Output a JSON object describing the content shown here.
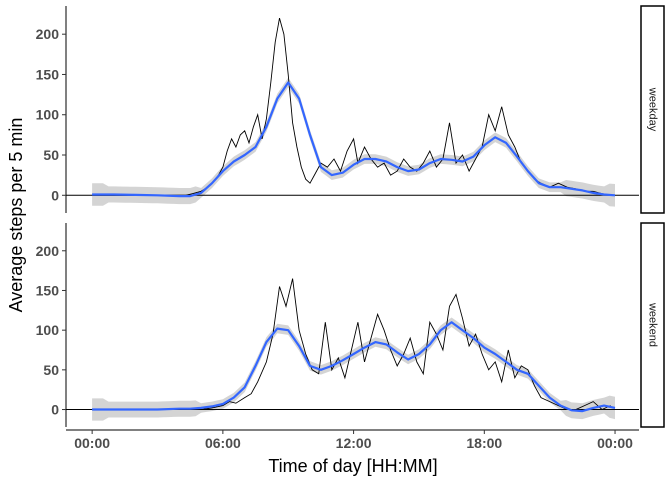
{
  "chart_data": {
    "type": "line",
    "title": "",
    "xlabel": "Time of day [HH:MM]",
    "ylabel": "Average steps per 5 min",
    "x_ticks": [
      "00:00",
      "06:00",
      "12:00",
      "18:00",
      "00:00"
    ],
    "y_ticks": [
      0,
      50,
      100,
      150,
      200
    ],
    "xlim_hours": [
      -1.2,
      25.1
    ],
    "ylim": [
      -22,
      235
    ],
    "grid": false,
    "facet_strip_position": "right",
    "colors": {
      "smooth": "#3366ff",
      "band": "#cccccc",
      "raw": "#000000",
      "zero_line": "#000000"
    },
    "panels": [
      {
        "label": "weekday",
        "raw": {
          "x": [
            0,
            0.5,
            1,
            1.5,
            2,
            2.5,
            3,
            3.5,
            4,
            4.3,
            4.6,
            5,
            5.3,
            5.6,
            5.8,
            6,
            6.2,
            6.4,
            6.6,
            6.8,
            7,
            7.2,
            7.4,
            7.6,
            7.8,
            8,
            8.2,
            8.4,
            8.6,
            8.8,
            9,
            9.2,
            9.4,
            9.6,
            9.8,
            10,
            10.2,
            10.5,
            10.8,
            11.1,
            11.4,
            11.7,
            12,
            12.2,
            12.5,
            12.8,
            13.1,
            13.4,
            13.7,
            14,
            14.3,
            14.6,
            14.9,
            15.2,
            15.5,
            15.8,
            16.1,
            16.4,
            16.7,
            17,
            17.3,
            17.6,
            17.9,
            18.2,
            18.5,
            18.8,
            19.1,
            19.4,
            19.7,
            20,
            20.3,
            20.6,
            21,
            21.4,
            21.8,
            22.2,
            22.6,
            23,
            23.4,
            23.8
          ],
          "y": [
            0,
            0,
            0,
            0,
            0,
            0,
            0,
            0,
            0,
            0,
            2,
            5,
            10,
            18,
            25,
            35,
            55,
            70,
            60,
            75,
            80,
            65,
            85,
            100,
            70,
            95,
            140,
            190,
            220,
            200,
            150,
            90,
            60,
            35,
            20,
            15,
            25,
            40,
            35,
            45,
            30,
            55,
            70,
            40,
            60,
            45,
            35,
            40,
            25,
            30,
            45,
            35,
            30,
            40,
            55,
            35,
            45,
            90,
            40,
            50,
            30,
            45,
            60,
            100,
            80,
            110,
            75,
            60,
            40,
            30,
            20,
            15,
            10,
            15,
            10,
            8,
            5,
            5,
            2,
            0
          ]
        },
        "smooth": {
          "x": [
            0,
            1,
            2,
            3,
            4,
            4.5,
            5,
            5.5,
            6,
            6.5,
            7,
            7.5,
            8,
            8.5,
            9,
            9.5,
            10,
            10.5,
            11,
            11.5,
            12,
            12.5,
            13,
            13.5,
            14,
            14.5,
            15,
            15.5,
            16,
            16.5,
            17,
            17.5,
            18,
            18.5,
            19,
            19.5,
            20,
            20.5,
            21,
            21.5,
            22,
            22.5,
            23,
            23.5,
            24
          ],
          "y": [
            1,
            1,
            0.5,
            0,
            -1,
            -1,
            3,
            15,
            30,
            42,
            50,
            60,
            85,
            120,
            140,
            120,
            75,
            35,
            25,
            28,
            38,
            45,
            45,
            42,
            35,
            30,
            32,
            40,
            45,
            44,
            42,
            48,
            62,
            72,
            65,
            48,
            30,
            15,
            10,
            10,
            8,
            6,
            3,
            1,
            0
          ]
        }
      },
      {
        "label": "weekend",
        "raw": {
          "x": [
            0,
            0.5,
            1,
            1.5,
            2,
            2.5,
            3,
            3.5,
            4,
            4.5,
            5,
            5.5,
            6,
            6.3,
            6.6,
            7,
            7.3,
            7.6,
            8,
            8.3,
            8.6,
            8.9,
            9.2,
            9.5,
            9.8,
            10.1,
            10.4,
            10.7,
            11,
            11.3,
            11.6,
            11.9,
            12.2,
            12.5,
            12.8,
            13.1,
            13.4,
            13.7,
            14,
            14.3,
            14.6,
            14.9,
            15.2,
            15.5,
            15.8,
            16.1,
            16.4,
            16.7,
            17,
            17.3,
            17.6,
            17.9,
            18.2,
            18.5,
            18.8,
            19.1,
            19.4,
            19.7,
            20,
            20.3,
            20.6,
            21,
            21.4,
            21.8,
            22.2,
            22.6,
            23,
            23.4,
            23.8
          ],
          "y": [
            0,
            0,
            0,
            0,
            0,
            0,
            0,
            0,
            0,
            0,
            0,
            2,
            5,
            10,
            8,
            15,
            20,
            35,
            60,
            95,
            155,
            130,
            165,
            100,
            70,
            50,
            45,
            110,
            50,
            65,
            40,
            75,
            110,
            60,
            90,
            120,
            100,
            75,
            55,
            70,
            90,
            60,
            45,
            110,
            95,
            75,
            130,
            145,
            115,
            80,
            95,
            70,
            50,
            60,
            35,
            75,
            40,
            55,
            50,
            30,
            15,
            10,
            5,
            0,
            0,
            5,
            10,
            0,
            5
          ]
        },
        "smooth": {
          "x": [
            0,
            1,
            2,
            3,
            4,
            4.5,
            5,
            5.5,
            6,
            6.5,
            7,
            7.5,
            8,
            8.5,
            9,
            9.5,
            10,
            10.5,
            11,
            11.5,
            12,
            12.5,
            13,
            13.5,
            14,
            14.5,
            15,
            15.5,
            16,
            16.5,
            17,
            17.5,
            18,
            18.5,
            19,
            19.5,
            20,
            20.5,
            21,
            21.5,
            22,
            22.5,
            23,
            23.5,
            24
          ],
          "y": [
            0,
            0,
            0,
            0,
            1,
            1,
            2,
            4,
            7,
            15,
            28,
            55,
            85,
            102,
            100,
            80,
            55,
            50,
            55,
            62,
            70,
            78,
            85,
            82,
            72,
            63,
            70,
            82,
            100,
            110,
            100,
            90,
            78,
            70,
            60,
            50,
            45,
            30,
            15,
            5,
            -1,
            -2,
            2,
            5,
            2
          ]
        }
      }
    ]
  }
}
